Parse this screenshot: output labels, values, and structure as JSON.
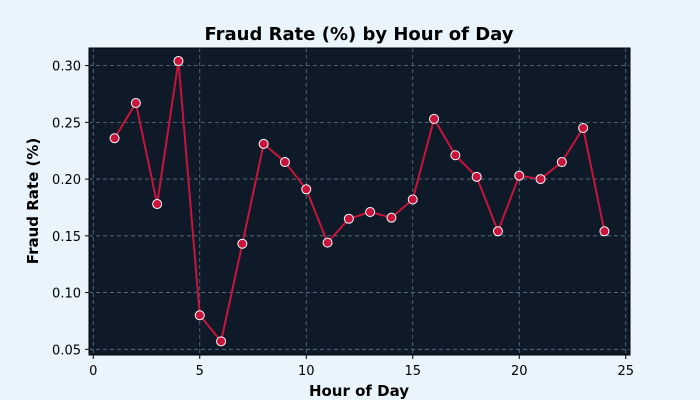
{
  "chart_data": {
    "type": "line",
    "title": "Fraud Rate (%) by Hour of Day",
    "xlabel": "Hour of Day",
    "ylabel": "Fraud Rate (%)",
    "xlim": [
      -0.2,
      25.2
    ],
    "ylim": [
      0.045,
      0.3155
    ],
    "xticks": [
      0,
      5,
      10,
      15,
      20,
      25
    ],
    "yticks": [
      0.05,
      0.1,
      0.15,
      0.2,
      0.25,
      0.3
    ],
    "grid": true,
    "x": [
      1,
      2,
      3,
      4,
      5,
      6,
      7,
      8,
      9,
      10,
      11,
      12,
      13,
      14,
      15,
      16,
      17,
      18,
      19,
      20,
      21,
      22,
      23,
      24
    ],
    "y": [
      0.236,
      0.267,
      0.178,
      0.304,
      0.08,
      0.057,
      0.143,
      0.231,
      0.215,
      0.191,
      0.144,
      0.165,
      0.171,
      0.166,
      0.182,
      0.253,
      0.221,
      0.202,
      0.154,
      0.203,
      0.2,
      0.215,
      0.245,
      0.154
    ]
  },
  "colors": {
    "figure_background": "#eaf4fc",
    "plot_background": "#0e1a28",
    "line": "#c8143c",
    "marker_fill": "#c8143c",
    "marker_edge": "#ffffff",
    "grid": "#5f7482"
  }
}
